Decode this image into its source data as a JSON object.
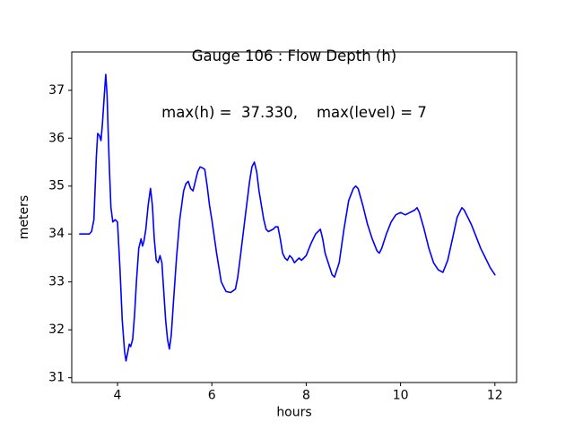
{
  "window": {
    "background": "#ffffff"
  },
  "chart_data": {
    "type": "line",
    "title": "Gauge 106 : Flow Depth (h)",
    "subtitle": "max(h) =  37.330,    max(level) = 7",
    "xlabel": "hours",
    "ylabel": "meters",
    "xlim": [
      3.03,
      12.46
    ],
    "ylim": [
      30.9,
      37.8
    ],
    "xticks": [
      4,
      6,
      8,
      10,
      12
    ],
    "yticks": [
      31,
      32,
      33,
      34,
      35,
      36,
      37
    ],
    "grid": false,
    "legend": "none",
    "line_color": "#0000ff",
    "max_h": 37.33,
    "max_level": 7,
    "series": [
      {
        "name": "flow-depth-h",
        "x": [
          3.2,
          3.3,
          3.4,
          3.45,
          3.5,
          3.55,
          3.58,
          3.62,
          3.65,
          3.68,
          3.72,
          3.75,
          3.78,
          3.8,
          3.83,
          3.86,
          3.9,
          3.95,
          4.0,
          4.05,
          4.1,
          4.15,
          4.18,
          4.22,
          4.25,
          4.28,
          4.32,
          4.36,
          4.4,
          4.45,
          4.5,
          4.53,
          4.56,
          4.6,
          4.65,
          4.7,
          4.74,
          4.78,
          4.82,
          4.86,
          4.9,
          4.94,
          4.98,
          5.02,
          5.06,
          5.1,
          5.14,
          5.18,
          5.25,
          5.32,
          5.4,
          5.45,
          5.5,
          5.55,
          5.6,
          5.65,
          5.7,
          5.75,
          5.8,
          5.85,
          5.9,
          5.95,
          6.0,
          6.1,
          6.2,
          6.3,
          6.4,
          6.5,
          6.55,
          6.6,
          6.7,
          6.8,
          6.85,
          6.9,
          6.95,
          7.0,
          7.1,
          7.15,
          7.2,
          7.3,
          7.35,
          7.4,
          7.45,
          7.5,
          7.55,
          7.6,
          7.65,
          7.7,
          7.75,
          7.8,
          7.85,
          7.9,
          7.95,
          8.0,
          8.1,
          8.2,
          8.3,
          8.35,
          8.4,
          8.5,
          8.55,
          8.6,
          8.7,
          8.8,
          8.9,
          9.0,
          9.05,
          9.1,
          9.2,
          9.3,
          9.4,
          9.5,
          9.55,
          9.6,
          9.7,
          9.8,
          9.9,
          10.0,
          10.1,
          10.2,
          10.3,
          10.35,
          10.4,
          10.5,
          10.6,
          10.7,
          10.8,
          10.9,
          11.0,
          11.1,
          11.2,
          11.3,
          11.35,
          11.4,
          11.5,
          11.6,
          11.7,
          11.8,
          11.9,
          12.0
        ],
        "y": [
          34.0,
          34.0,
          34.0,
          34.05,
          34.3,
          35.6,
          36.1,
          36.05,
          35.95,
          36.3,
          36.9,
          37.33,
          36.9,
          36.2,
          35.3,
          34.55,
          34.25,
          34.3,
          34.25,
          33.3,
          32.2,
          31.55,
          31.35,
          31.55,
          31.7,
          31.65,
          31.8,
          32.3,
          33.0,
          33.7,
          33.9,
          33.75,
          33.85,
          34.1,
          34.6,
          34.95,
          34.6,
          33.9,
          33.45,
          33.4,
          33.55,
          33.4,
          32.8,
          32.2,
          31.8,
          31.6,
          31.9,
          32.5,
          33.5,
          34.3,
          34.9,
          35.05,
          35.1,
          34.95,
          34.9,
          35.1,
          35.3,
          35.4,
          35.38,
          35.35,
          35.0,
          34.6,
          34.3,
          33.6,
          33.0,
          32.8,
          32.78,
          32.85,
          33.1,
          33.5,
          34.3,
          35.1,
          35.4,
          35.5,
          35.3,
          34.9,
          34.3,
          34.1,
          34.05,
          34.1,
          34.15,
          34.15,
          33.9,
          33.6,
          33.5,
          33.45,
          33.55,
          33.5,
          33.4,
          33.45,
          33.5,
          33.45,
          33.5,
          33.55,
          33.8,
          34.0,
          34.1,
          33.9,
          33.6,
          33.3,
          33.15,
          33.1,
          33.4,
          34.1,
          34.7,
          34.95,
          35.0,
          34.95,
          34.6,
          34.2,
          33.9,
          33.65,
          33.6,
          33.7,
          34.0,
          34.25,
          34.4,
          34.45,
          34.4,
          34.45,
          34.5,
          34.55,
          34.45,
          34.1,
          33.7,
          33.4,
          33.25,
          33.2,
          33.45,
          33.9,
          34.35,
          34.55,
          34.5,
          34.4,
          34.2,
          33.95,
          33.7,
          33.5,
          33.3,
          33.15
        ]
      }
    ]
  }
}
